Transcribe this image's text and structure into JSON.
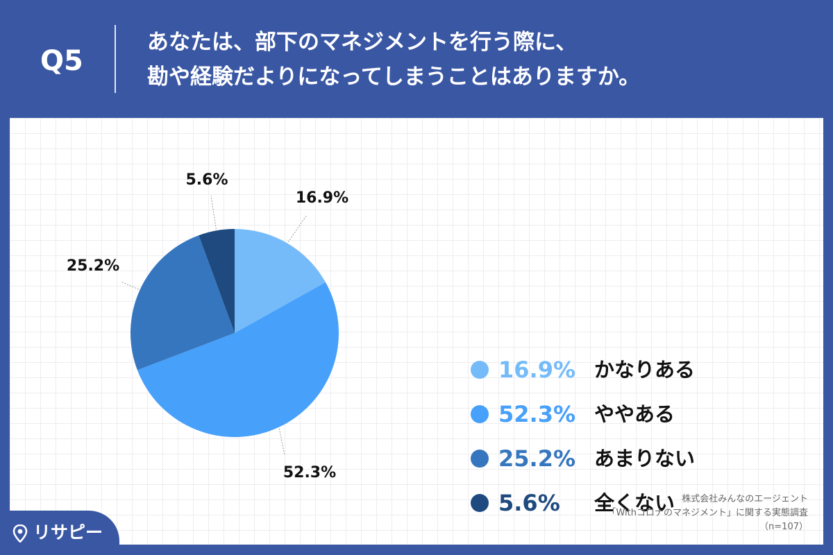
{
  "header": {
    "q_number": "Q5",
    "question_line1": "あなたは、部下のマネジメントを行う際に、",
    "question_line2": "勘や経験だよりになってしまうことはありますか。"
  },
  "chart_data": {
    "type": "pie",
    "title": "",
    "slices": [
      {
        "label": "かなりある",
        "value": 16.9,
        "value_label": "16.9%",
        "color": "#75bbf9"
      },
      {
        "label": "ややある",
        "value": 52.3,
        "value_label": "52.3%",
        "color": "#47a0fa"
      },
      {
        "label": "あまりない",
        "value": 25.2,
        "value_label": "25.2%",
        "color": "#3676bf"
      },
      {
        "label": "全くない",
        "value": 5.6,
        "value_label": "5.6%",
        "color": "#1e4a7f"
      }
    ],
    "start_angle": "12 o'clock",
    "direction": "clockwise",
    "legend_position": "right"
  },
  "legend": {
    "items": [
      {
        "pct": "16.9%",
        "label": "かなりある",
        "color": "#75bbf9"
      },
      {
        "pct": "52.3%",
        "label": "ややある",
        "color": "#47a0fa"
      },
      {
        "pct": "25.2%",
        "label": "あまりない",
        "color": "#3676bf"
      },
      {
        "pct": "5.6%",
        "label": "全くない",
        "color": "#1e4a7f"
      }
    ]
  },
  "source": {
    "line1": "株式会社みんなのエージェント",
    "line2": "「Withコロナのマネジメント」に関する実態調査",
    "line3": "（n=107）"
  },
  "logo": {
    "text": "リサピー",
    "icon": "location-pin-icon"
  }
}
